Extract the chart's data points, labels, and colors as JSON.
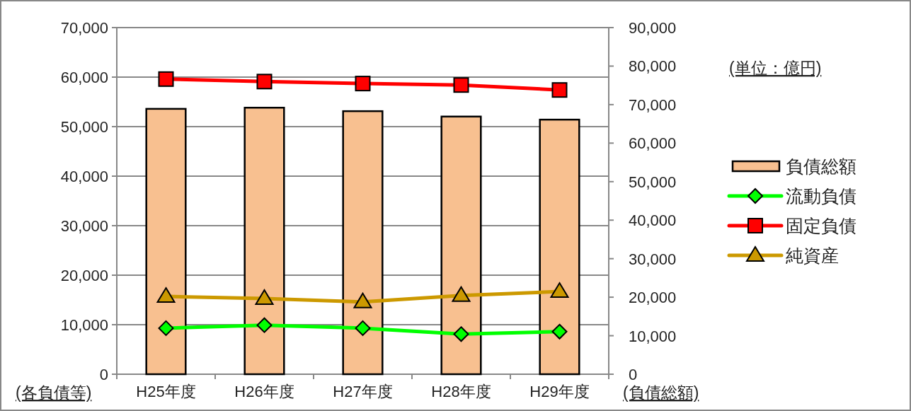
{
  "chart_data": {
    "type": "bar",
    "categories": [
      "H25年度",
      "H26年度",
      "H27年度",
      "H28年度",
      "H29年度"
    ],
    "series": [
      {
        "name": "負債総額",
        "axis": "y2",
        "color": "#f8c090",
        "values": [
          68900,
          69200,
          68300,
          66900,
          66100
        ]
      },
      {
        "name": "流動負債",
        "type": "line",
        "color": "#00ff00",
        "marker": "diamond",
        "values": [
          9300,
          9900,
          9300,
          8100,
          8600
        ]
      },
      {
        "name": "固定負債",
        "type": "line",
        "color": "#ff0000",
        "marker": "square",
        "values": [
          59600,
          59100,
          58700,
          58400,
          57400
        ]
      },
      {
        "name": "純資産",
        "type": "line",
        "color": "#cc9900",
        "marker": "triangle",
        "values": [
          15700,
          15300,
          14600,
          15900,
          16700
        ]
      }
    ],
    "ylabel": "(各負債等)",
    "y2label": "(負債総額)",
    "annotations": [
      "(単位：億円)"
    ],
    "ylim": [
      0,
      70000
    ],
    "yticks": [
      {
        "value": 0,
        "label": "0"
      },
      {
        "value": 10000,
        "label": "10,000"
      },
      {
        "value": 20000,
        "label": "20,000"
      },
      {
        "value": 30000,
        "label": "30,000"
      },
      {
        "value": 40000,
        "label": "40,000"
      },
      {
        "value": 50000,
        "label": "50,000"
      },
      {
        "value": 60000,
        "label": "60,000"
      },
      {
        "value": 70000,
        "label": "70,000"
      }
    ],
    "y2lim": [
      0,
      90000
    ],
    "y2ticks": [
      {
        "value": 0,
        "label": "0"
      },
      {
        "value": 10000,
        "label": "10,000"
      },
      {
        "value": 20000,
        "label": "20,000"
      },
      {
        "value": 30000,
        "label": "30,000"
      },
      {
        "value": 40000,
        "label": "40,000"
      },
      {
        "value": 50000,
        "label": "50,000"
      },
      {
        "value": 60000,
        "label": "60,000"
      },
      {
        "value": 70000,
        "label": "70,000"
      },
      {
        "value": 80000,
        "label": "80,000"
      },
      {
        "value": 90000,
        "label": "90,000"
      }
    ],
    "grid": "y",
    "legend": "right",
    "line_style": "solid"
  }
}
